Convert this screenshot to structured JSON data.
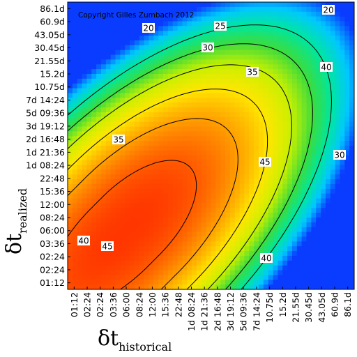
{
  "chart_data": {
    "type": "heatmap",
    "copyright": "Copyright Gilles Zumbach 2012",
    "xlabel": {
      "symbol": "δt",
      "subscript": "historical"
    },
    "ylabel": {
      "symbol": "δt",
      "subscript": "realized"
    },
    "x_ticks": [
      "01:12",
      "02:24",
      "02:24",
      "03:36",
      "06:00",
      "08:24",
      "12:00",
      "15:36",
      "22:48",
      "1d 08:24",
      "1d 21:36",
      "2d 16:48",
      "3d 19:12",
      "5d 09:36",
      "7d 14:24",
      "10.75d",
      "15.2d",
      "21.55d",
      "30.45d",
      "43.05d",
      "60.9d",
      "86.1d"
    ],
    "y_ticks": [
      "86.1d",
      "60.9d",
      "43.05d",
      "30.45d",
      "21.55d",
      "15.2d",
      "10.75d",
      "7d 14:24",
      "5d 09:36",
      "3d 19:12",
      "2d 16:48",
      "1d 21:36",
      "1d 08:24",
      "22:48",
      "15:36",
      "12:00",
      "08:24",
      "06:00",
      "03:36",
      "02:24",
      "02:24",
      "01:12"
    ],
    "contour_levels": [
      "20",
      "25",
      "30",
      "35",
      "40",
      "45"
    ],
    "contour_labels": [
      {
        "text": "20",
        "level": 20
      },
      {
        "text": "25",
        "level": 25
      },
      {
        "text": "30",
        "level": 30
      },
      {
        "text": "35",
        "level": 35
      },
      {
        "text": "40",
        "level": 40
      },
      {
        "text": "45",
        "level": 45
      },
      {
        "text": "40",
        "level": 40
      },
      {
        "text": "45",
        "level": 45
      },
      {
        "text": "35",
        "level": 35
      },
      {
        "text": "30",
        "level": 30
      },
      {
        "text": "40",
        "level": 40
      },
      {
        "text": "20",
        "level": 20
      }
    ],
    "colorscale": [
      "#0a3cff",
      "#00c8ff",
      "#00e6a0",
      "#3cdc3c",
      "#c8f000",
      "#ffe600",
      "#ffa000",
      "#ff5a00",
      "#ff1e00"
    ],
    "value_range": [
      10,
      50
    ]
  }
}
